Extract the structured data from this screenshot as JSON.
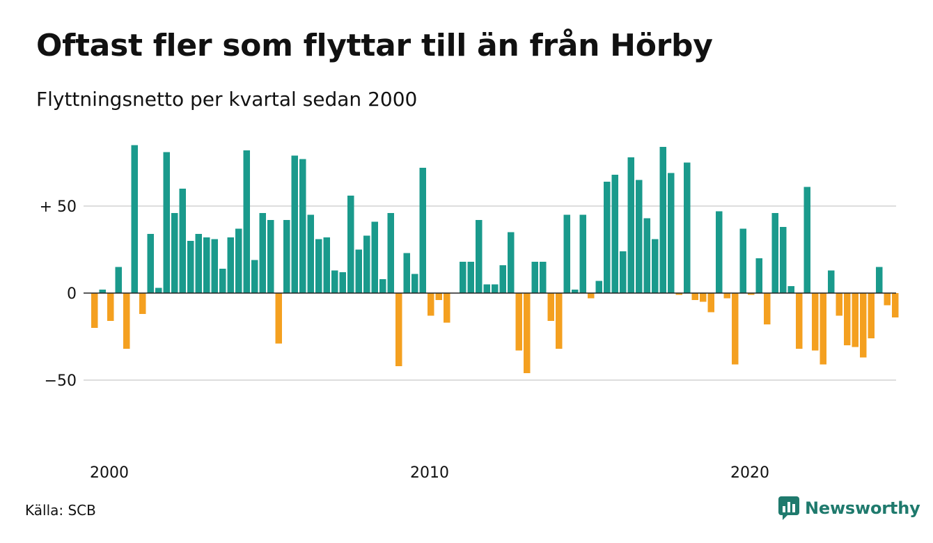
{
  "chart_data": {
    "type": "bar",
    "title": "Oftast fler som flyttar till än från Hörby",
    "subtitle": "Flyttningsnetto per kvartal sedan 2000",
    "x_start": "2000 Q1",
    "x_ticks": [
      {
        "label": "2000",
        "year": 2000
      },
      {
        "label": "2010",
        "year": 2010
      },
      {
        "label": "2020",
        "year": 2020
      }
    ],
    "y_ticks": [
      {
        "label": "+ 50",
        "value": 50
      },
      {
        "label": "0",
        "value": 0
      },
      {
        "label": "−50",
        "value": -50
      }
    ],
    "ylim": [
      -90,
      90
    ],
    "grid": true,
    "colors": {
      "positive": "#1a9a8c",
      "negative": "#f4a020",
      "grid": "#dddddd",
      "zero_line": "#222222"
    },
    "values": [
      -20,
      2,
      -16,
      15,
      -32,
      85,
      -12,
      34,
      3,
      81,
      46,
      60,
      30,
      34,
      32,
      31,
      14,
      32,
      37,
      82,
      19,
      46,
      42,
      -29,
      42,
      79,
      77,
      45,
      31,
      32,
      13,
      12,
      56,
      25,
      33,
      41,
      8,
      46,
      -42,
      23,
      11,
      72,
      -13,
      -4,
      -17,
      0,
      18,
      18,
      42,
      5,
      5,
      16,
      35,
      -33,
      -46,
      18,
      18,
      -16,
      -32,
      45,
      2,
      45,
      -3,
      7,
      64,
      68,
      24,
      78,
      65,
      43,
      31,
      84,
      69,
      -1,
      75,
      -4,
      -5,
      -11,
      47,
      -3,
      -41,
      37,
      -1,
      20,
      -18,
      46,
      38,
      4,
      -32,
      61,
      -33,
      -41,
      13,
      -13,
      -30,
      -31,
      -37,
      -26,
      15,
      -7,
      -14
    ]
  },
  "footer": {
    "source": "Källa: SCB",
    "brand": "Newsworthy"
  }
}
